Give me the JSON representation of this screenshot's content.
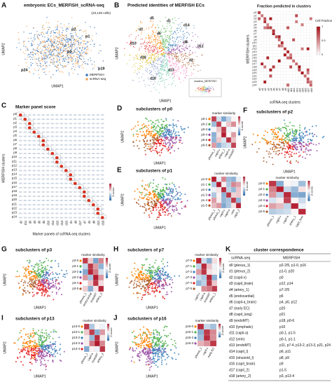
{
  "A": {
    "label": "A",
    "title": "embryonic ECs_MERFISH_scRNA-seq",
    "cells": "(23,130 cells)",
    "x_axis": "UMAP1",
    "y_axis": "UMAP2",
    "legend": [
      "MERFISH",
      "scRNA-seq"
    ],
    "clusters": [
      "p2",
      "p1",
      "p0",
      "p24",
      "p19"
    ]
  },
  "B": {
    "label": "B",
    "title": "Predicted identities of MERFISH ECs",
    "x_axis": "UMAP1",
    "y_axis": "UMAP2",
    "clusters": [
      "d5",
      "d1",
      "d14",
      "d10",
      "d3",
      "d6",
      "d18",
      "d8",
      "d12",
      "d13",
      "d16",
      "d2"
    ],
    "inset": "clusters_MERFISH",
    "heatmap_title": "Fraction predicted in clusters",
    "heatmap_x": "scRNA-seq clusters",
    "heatmap_y": "MERFISH clusters",
    "scale_title": "Cell Fraction",
    "scale_ticks": [
      "1",
      "0.5",
      "0"
    ],
    "rows": [
      "p0",
      "p1",
      "p2",
      "p3",
      "p4",
      "p5",
      "p6",
      "p7",
      "p8",
      "p9",
      "p10",
      "p11",
      "p12",
      "p13",
      "p14",
      "p15",
      "p16",
      "p17",
      "p18",
      "p19",
      "p20",
      "p21",
      "p22",
      "p23",
      "p24"
    ],
    "cols": [
      "d0",
      "d1",
      "d2",
      "d3",
      "d4",
      "d5",
      "d6",
      "d7",
      "d8",
      "d9",
      "d10",
      "d11",
      "d12",
      "d13",
      "d14",
      "d15",
      "d16",
      "d17",
      "d18"
    ]
  },
  "C": {
    "label": "C",
    "title": "Marker panel score",
    "x_axis": "Marker panels of scRNA-seq clusters",
    "y_axis": "MERFISH clusters",
    "scale": "Z-score",
    "rows": [
      "p0",
      "p1",
      "p2",
      "p3",
      "p4",
      "p5",
      "p6",
      "p7",
      "p8",
      "p9",
      "p10",
      "p11",
      "p12",
      "p13",
      "p14",
      "p15",
      "p16",
      "p17",
      "p18",
      "p19",
      "p20",
      "p21",
      "p22",
      "p23",
      "p24"
    ],
    "cols": [
      "d2",
      "d11",
      "d0",
      "d3",
      "d6",
      "d5",
      "d16",
      "d14",
      "d15",
      "d13",
      "d10",
      "d1",
      "d9",
      "d17",
      "d7",
      "d4",
      "d8",
      "d12",
      "d18"
    ]
  },
  "D": {
    "label": "D",
    "title": "subclusters of p0",
    "x_axis": "UMAP1",
    "y_axis": "UMAP2",
    "heatmap_title": "marker similarity",
    "scale": "Z-score",
    "rows": [
      "p0-1",
      "p0-2",
      "p0-3",
      "p0-4",
      "p0-5",
      "p0-6"
    ],
    "cols": [
      "plexus_1",
      "capil-v",
      "artery_1",
      "capil-a",
      "endoMT"
    ]
  },
  "E": {
    "label": "E",
    "title": "subclusters of p1",
    "x_axis": "UMAP1",
    "y_axis": "UMAP2",
    "heatmap_title": "marker similarity",
    "scale": "Z-score",
    "rows": [
      "p1-0",
      "p1-1",
      "p1-2",
      "p1-3",
      "p1-4",
      "p1-5"
    ],
    "cols": [
      "plexus_1",
      "plexus_2",
      "capil-v",
      "capil-a",
      "vein",
      "capil_2"
    ]
  },
  "F": {
    "label": "F",
    "title": "subclusters of p2",
    "x_axis": "UMAP1",
    "y_axis": "UMAP2",
    "heatmap_title": "marker similarity",
    "scale": "Z-score",
    "rows": [
      "p2-0",
      "p2-1",
      "p2-2",
      "p2-3",
      "p2-4",
      "p2-5"
    ],
    "cols": [
      "plexus_1",
      "capil-v",
      "capil-a",
      "artery_1",
      "capil_liver"
    ]
  },
  "G": {
    "label": "G",
    "title": "subclusters of p3",
    "x_axis": "UMAP1",
    "y_axis": "UMAP2",
    "heatmap_title": "marker similarity",
    "scale": "Z-score",
    "rows": [
      "p3-0",
      "p3-1",
      "p3-2",
      "p3-3",
      "p3-4",
      "p3-5"
    ],
    "cols": [
      "plexus_1",
      "endocardial",
      "endoMT",
      "artery_2"
    ]
  },
  "H": {
    "label": "H",
    "title": "subclusters of p7",
    "x_axis": "UMAP1",
    "y_axis": "UMAP2",
    "heatmap_title": "marker similarity",
    "scale": "Z-score",
    "rows": [
      "p7-0",
      "p7-1",
      "p7-2",
      "p7-3",
      "p7-4",
      "p7-5"
    ],
    "cols": [
      "capil-v",
      "capil-a",
      "endoMT",
      "artery_1"
    ]
  },
  "I": {
    "label": "I",
    "title": "subclusters of p13",
    "x_axis": "UMAP1",
    "y_axis": "UMAP2",
    "heatmap_title": "marker similarity",
    "scale": "Z-score",
    "rows": [
      "p13-0",
      "p13-1",
      "p13-2",
      "p13-3",
      "p13-4"
    ],
    "cols": [
      "plexus_1",
      "capil-a",
      "endoMT",
      "artery_2"
    ]
  },
  "J": {
    "label": "J",
    "title": "subclusters of p16",
    "x_axis": "UMAP1",
    "y_axis": "UMAP2",
    "heatmap_title": "marker similarity",
    "scale": "Z-score",
    "rows": [
      "p16-0",
      "p16-1",
      "p16-2",
      "p16-3"
    ],
    "cols": [
      "plexus_1",
      "capil-v",
      "early EC"
    ]
  },
  "K": {
    "label": "K",
    "title": "cluster correspondence",
    "header": [
      "scRNA-seq",
      "MERFISH"
    ],
    "rows": [
      [
        "d0 (plexus_1)",
        "p2-2/5, p1-0, p16"
      ],
      [
        "d1 (plexus_2)",
        "p1-0, p20"
      ],
      [
        "d2 (capil-v)",
        "p0"
      ],
      [
        "d3 (capil_brain)",
        "p12, p14"
      ],
      [
        "d4 (artery_1)",
        "p7-2/5"
      ],
      [
        "d5 (endocardial)",
        "p5"
      ],
      [
        "d6 (capil-a_brain)",
        "p4, p6, p12"
      ],
      [
        "d7 (early EC)",
        "p20"
      ],
      [
        "d8 (capil_lung)",
        "p21"
      ],
      [
        "d9 (endoMT)",
        "p18, p0-6"
      ],
      [
        "d10 (lymphatic)",
        "p10"
      ],
      [
        "d11 (capil-a)",
        "p0-1, p1-5"
      ],
      [
        "d12 (vein)",
        "p0-1, p1-1"
      ],
      [
        "d13 (endoMT)",
        "p11, p7-4, p13-2, p13-3, p21, p24"
      ],
      [
        "d14 (capil_l)",
        "p6, p11"
      ],
      [
        "d15 (sinusoid_l)",
        "p8, p9"
      ],
      [
        "d16 (capil_brain)",
        "p9"
      ],
      [
        "d17 (capil_2)",
        "p1-5"
      ],
      [
        "d18 (artery_2)",
        "p3, p13-4"
      ]
    ]
  }
}
